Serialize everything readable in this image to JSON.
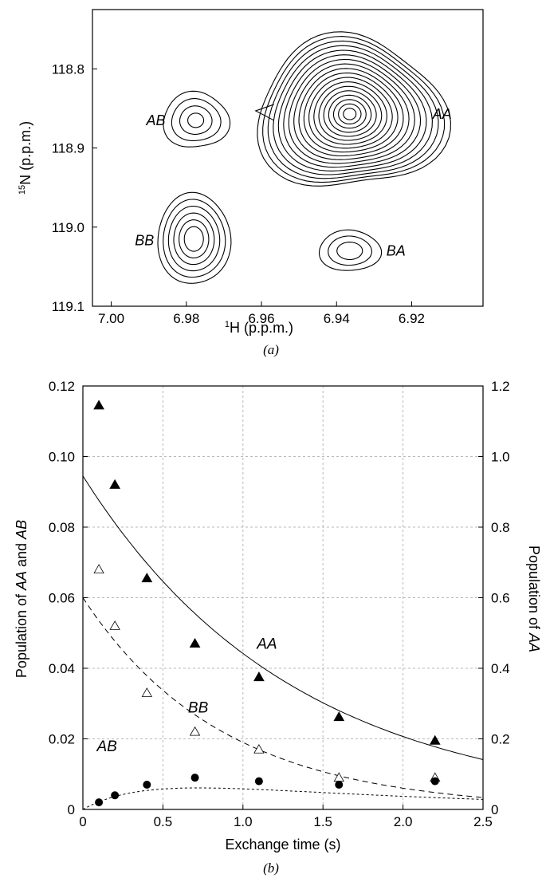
{
  "chart_data": [
    {
      "panel_label": "(a)",
      "type": "contour",
      "xlabel_sup": "1",
      "xlabel": "H (p.p.m.)",
      "ylabel_sup": "15",
      "ylabel": "N (p.p.m.)",
      "x_ticks": [
        "7.00",
        "6.98",
        "6.96",
        "6.94",
        "6.92"
      ],
      "y_ticks": [
        "118.8",
        "118.9",
        "119.0",
        "119.1"
      ],
      "xlim": [
        7.005,
        6.901
      ],
      "ylim": [
        119.1,
        118.725
      ],
      "x_reversed": true,
      "y_reversed": true,
      "peaks": [
        {
          "label": "AB",
          "x": 6.9775,
          "y": 118.865,
          "rings": 4
        },
        {
          "label": "AA",
          "x": 6.9365,
          "y": 118.857,
          "rings": 18
        },
        {
          "label": "BB",
          "x": 6.978,
          "y": 119.015,
          "rings": 6
        },
        {
          "label": "BA",
          "x": 6.9365,
          "y": 119.03,
          "rings": 3
        }
      ]
    },
    {
      "panel_label": "(b)",
      "type": "scatter",
      "xlabel": "Exchange time (s)",
      "ylabel_left_parts": [
        "Population of ",
        "AA",
        " and ",
        "AB"
      ],
      "ylabel_right_parts": [
        "Population of ",
        "AA"
      ],
      "x_ticks": [
        "0",
        "0.5",
        "1.0",
        "1.5",
        "2.0",
        "2.5"
      ],
      "y_ticks_left": [
        "0",
        "0.02",
        "0.04",
        "0.06",
        "0.08",
        "0.10",
        "0.12"
      ],
      "y_ticks_right": [
        "0",
        "0.2",
        "0.4",
        "0.6",
        "0.8",
        "1.0",
        "1.2"
      ],
      "xlim": [
        0,
        2.5
      ],
      "ylim_left": [
        0,
        0.12
      ],
      "ylim_right": [
        0,
        1.2
      ],
      "grid": true,
      "series": [
        {
          "name": "AA",
          "marker": "filled-triangle",
          "axis": "right",
          "x": [
            0.1,
            0.2,
            0.4,
            0.7,
            1.1,
            1.6,
            2.2
          ],
          "y": [
            1.145,
            0.92,
            0.655,
            0.47,
            0.375,
            0.262,
            0.195
          ]
        },
        {
          "name": "BB",
          "marker": "open-triangle",
          "axis": "left",
          "x": [
            0.1,
            0.2,
            0.4,
            0.7,
            1.1,
            1.6,
            2.2
          ],
          "y": [
            0.068,
            0.052,
            0.033,
            0.022,
            0.017,
            0.009,
            0.009
          ]
        },
        {
          "name": "AB",
          "marker": "filled-circle",
          "axis": "left",
          "x": [
            0.1,
            0.2,
            0.4,
            0.7,
            1.1,
            1.6,
            2.2
          ],
          "y": [
            0.002,
            0.004,
            0.007,
            0.009,
            0.008,
            0.007,
            0.008
          ]
        }
      ],
      "fits": [
        {
          "name": "AA",
          "style": "solid",
          "axis": "right",
          "x0": 0.945,
          "rate": 0.76
        },
        {
          "name": "BB",
          "style": "dashed",
          "axis": "left",
          "x0": 0.06,
          "rate": 1.15
        },
        {
          "name": "AB",
          "style": "dotted",
          "axis": "left",
          "amp": 0.0113,
          "k1": 0.55,
          "k2": 2.8
        }
      ],
      "annotations": [
        "AA",
        "BB",
        "AB"
      ]
    }
  ]
}
